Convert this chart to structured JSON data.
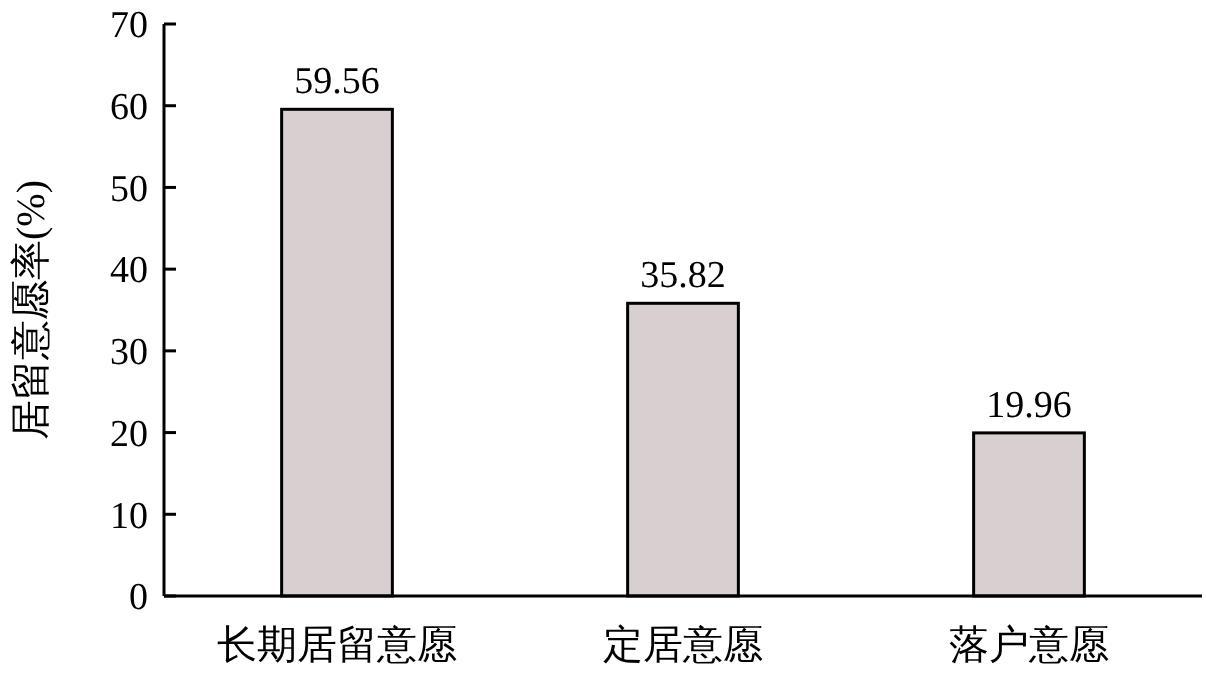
{
  "chart_data": {
    "type": "bar",
    "ylabel": "居留意愿率(%)",
    "categories": [
      "长期居留意愿",
      "定居意愿",
      "落户意愿"
    ],
    "values": [
      59.56,
      35.82,
      19.96
    ],
    "color": "#d8d0d0",
    "ylim": [
      0,
      70
    ],
    "yticks": [
      0,
      10,
      20,
      30,
      40,
      50,
      60,
      70
    ],
    "data_labels": true,
    "grid": false
  }
}
